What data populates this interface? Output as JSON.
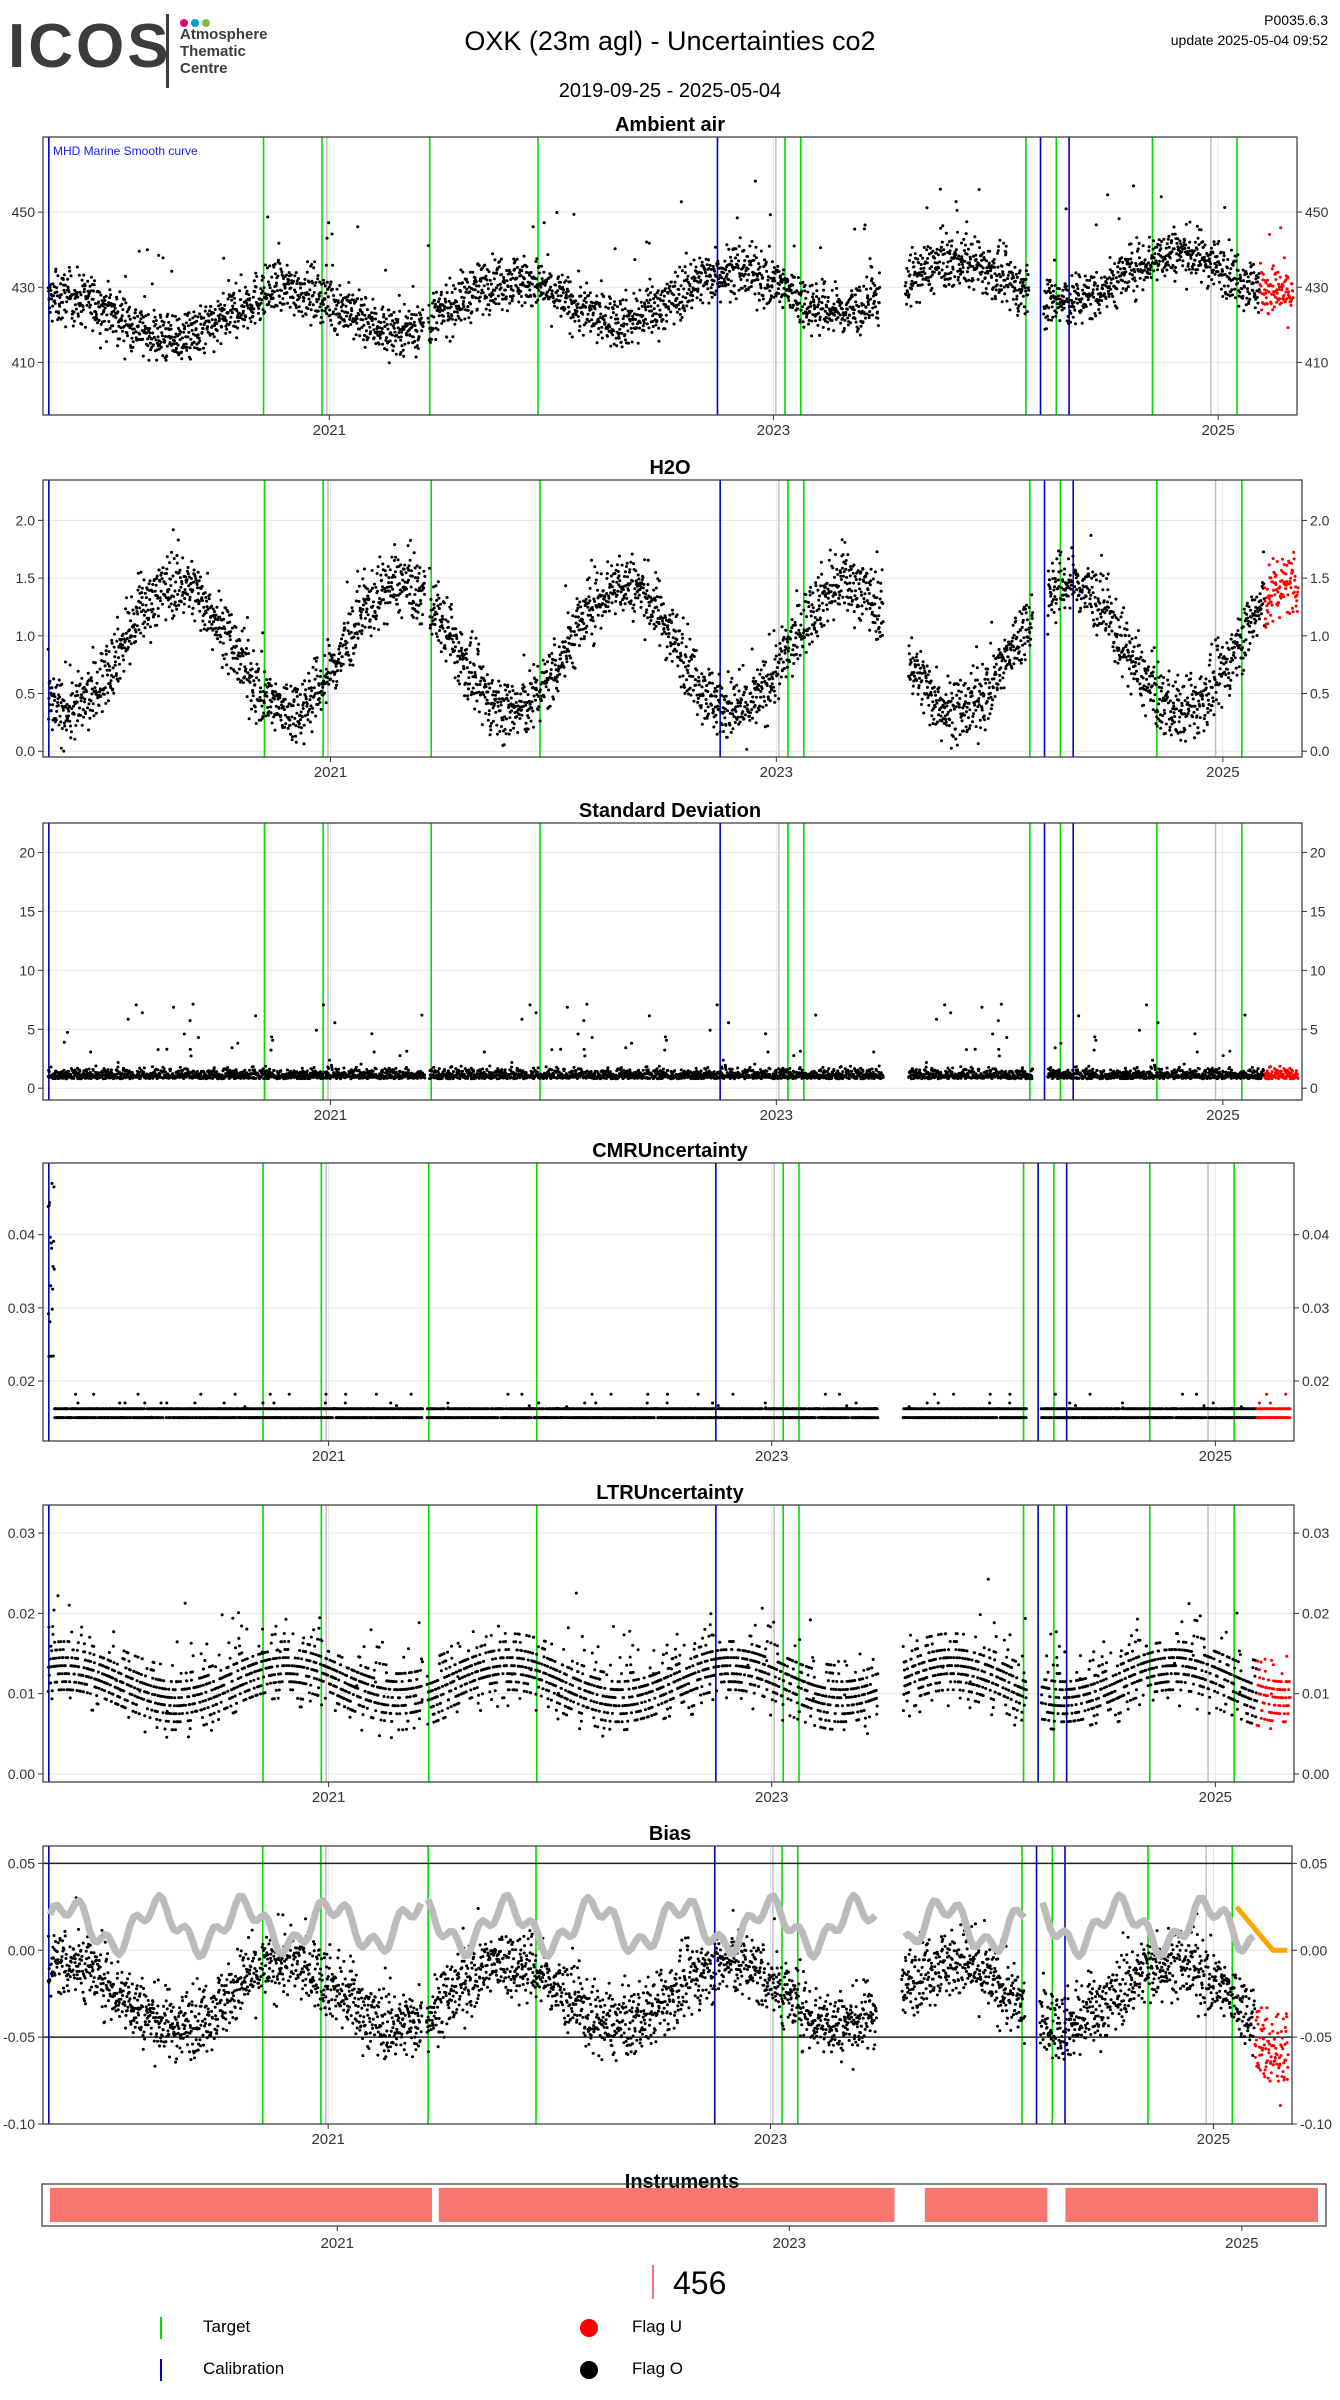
{
  "header": {
    "logo_word": "ICOS",
    "logo_lines": [
      "Atmosphere",
      "Thematic",
      "Centre"
    ],
    "logo_dot_colors": [
      "#e4007c",
      "#00a0dc",
      "#7fbf3f"
    ],
    "title": "OXK  (23m agl) - Uncertainties co2",
    "date_range": "2019-09-25 - 2025-05-04",
    "version": "P0035.6.3",
    "update": "update  2025-05-04 09:52"
  },
  "colors": {
    "target": "#00dd00",
    "calibration": "#0000cc",
    "flag_u": "#ff0000",
    "flag_o": "#000000",
    "grey_line": "#c0c0c0",
    "bias_smooth": "#bbbbbb",
    "bias_recent": "#ffa500",
    "instrument": "#f8766d"
  },
  "chart_data": {
    "type": "scatter",
    "x_range": [
      "2019-09-25",
      "2025-05-04"
    ],
    "x_tick_labels": [
      "2021",
      "2023",
      "2025"
    ],
    "x_tick_dates": [
      "2021-01-01",
      "2023-01-01",
      "2025-01-01"
    ],
    "target_dates": [
      "2020-09-15",
      "2020-12-20",
      "2021-06-15",
      "2021-12-10",
      "2023-01-20",
      "2023-02-15",
      "2024-02-20",
      "2024-04-10",
      "2024-09-15",
      "2025-02-01"
    ],
    "calibration_dates": [
      "2019-09-28",
      "2022-10-01",
      "2024-03-15",
      "2024-05-01"
    ],
    "grey_line_dates": [
      "2020-12-28",
      "2023-01-05",
      "2024-12-20"
    ],
    "gaps": [
      [
        "2021-06-05",
        "2021-06-12"
      ],
      [
        "2023-06-25",
        "2023-08-05"
      ],
      [
        "2024-02-25",
        "2024-03-20"
      ]
    ],
    "recent_flag_u_start": "2025-03-10",
    "panels": [
      {
        "title": "Ambient air",
        "annotation": "MHD Marine Smooth curve",
        "ylim": [
          396,
          470
        ],
        "yticks": [
          410,
          430,
          450
        ],
        "yticklabels": [
          "410",
          "430",
          "450"
        ],
        "base": 421,
        "trend": 2.4,
        "season": 6,
        "noise": 5,
        "spikes": 0.02,
        "spike_size": 25
      },
      {
        "title": "H2O",
        "annotation": "",
        "ylim": [
          -0.05,
          2.35
        ],
        "yticks": [
          0,
          0.5,
          1,
          1.5,
          2
        ],
        "yticklabels": [
          "0.0",
          "0.5",
          "1.0",
          "1.5",
          "2.0"
        ],
        "base": 0.9,
        "trend": 0,
        "season": -0.55,
        "noise": 0.2,
        "spikes": 0.02,
        "spike_size": 0.45
      },
      {
        "title": "Standard Deviation",
        "annotation": "",
        "ylim": [
          -1,
          22.5
        ],
        "yticks": [
          0,
          5,
          10,
          15,
          20
        ],
        "yticklabels": [
          "0",
          "5",
          "10",
          "15",
          "20"
        ],
        "base": 0.8,
        "trend": 0,
        "season": 0,
        "noise": 0.6,
        "spikes": 0.03,
        "spike_size": 6
      },
      {
        "title": "CMRUncertainty",
        "annotation": "",
        "ylim": [
          0.0118,
          0.0498
        ],
        "yticks": [
          0.02,
          0.03,
          0.04
        ],
        "yticklabels": [
          "0.02",
          "0.03",
          "0.04"
        ],
        "base": 0.0162,
        "trend": 0,
        "season": 0,
        "noise": 0.0006,
        "spikes": 0.004,
        "spike_size": 0.002
      },
      {
        "title": "LTRUncertainty",
        "annotation": "",
        "ylim": [
          -0.001,
          0.0335
        ],
        "yticks": [
          0,
          0.01,
          0.02,
          0.03
        ],
        "yticklabels": [
          "0.00",
          "0.01",
          "0.02",
          "0.03"
        ],
        "base": 0.0115,
        "trend": 0,
        "season": 0.002,
        "noise": 0.003,
        "spikes": 0.03,
        "spike_size": 0.01
      },
      {
        "title": "Bias",
        "annotation": "",
        "ylim": [
          -0.1,
          0.06
        ],
        "yticks": [
          -0.1,
          -0.05,
          0,
          0.05
        ],
        "yticklabels": [
          "-0.10",
          "-0.05",
          "0.00",
          "0.05"
        ],
        "hlines": [
          0.05,
          -0.05
        ],
        "base": -0.025,
        "trend": 0,
        "season": 0.018,
        "noise": 0.014,
        "spikes": 0.02,
        "spike_size": 0.03
      }
    ],
    "instruments": {
      "title": "Instruments",
      "segments": [
        [
          "2019-09-25",
          "2021-06-03"
        ],
        [
          "2021-06-14",
          "2023-06-20"
        ],
        [
          "2023-08-08",
          "2024-02-22"
        ],
        [
          "2024-03-22",
          "2025-05-04"
        ]
      ],
      "count_label": "456"
    }
  },
  "legend": {
    "target": "Target",
    "calibration": "Calibration",
    "flag_u": "Flag U",
    "flag_o": "Flag O"
  }
}
